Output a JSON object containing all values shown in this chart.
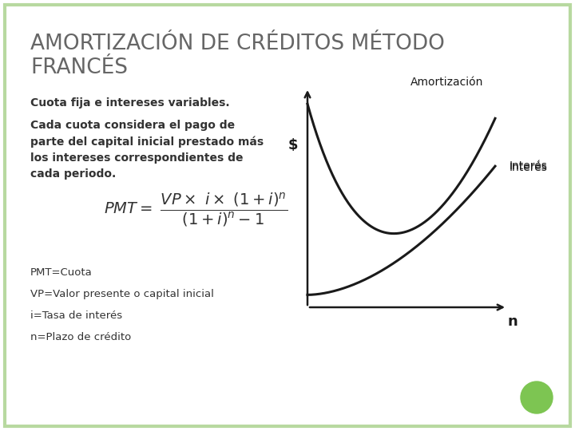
{
  "title_line1": "AMORTIZACIÓN DE CRÉDITOS MÉTODO",
  "title_line2": "FRANCÉS",
  "title_color": "#666666",
  "background_color": "#ffffff",
  "border_color": "#b8d9a0",
  "text1": "Cuota fija e intereses variables.",
  "label_pmt": "PMT=Cuota",
  "label_vp": "VP=Valor presente o capital inicial",
  "label_i": "i=Tasa de interés",
  "label_n": "n=Plazo de crédito",
  "chart_label_amort": "Amortización",
  "chart_label_interes": "Interés",
  "chart_label_dollar": "$",
  "chart_label_n": "n",
  "text_color": "#333333",
  "chart_color": "#1a1a1a",
  "green_dot_color": "#7DC552"
}
